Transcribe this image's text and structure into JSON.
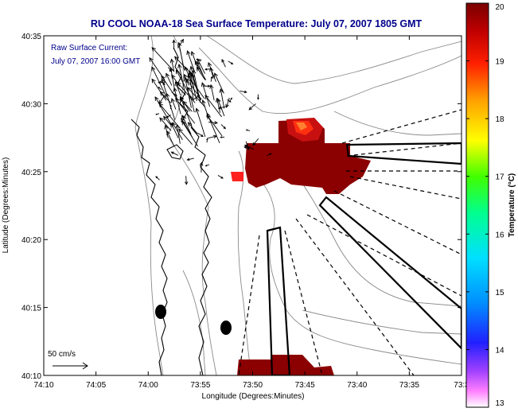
{
  "title": "RU COOL  NOAA-18  Sea Surface Temperature:  July 07, 2007 1805 GMT",
  "annotation": {
    "line1": "Raw Surface Current:",
    "line2": "July 07, 2007 16:00 GMT"
  },
  "scale_label": "50 cm/s",
  "xlabel": "Longitude (Degrees:Minutes)",
  "ylabel": "Latitude (Degrees:Minutes)",
  "colorbar": {
    "label": "Temperature (°C)",
    "min": 13,
    "max": 20,
    "ticks": [
      "20",
      "19",
      "18",
      "17",
      "16",
      "15",
      "14",
      "13"
    ]
  },
  "x_ticks": [
    "74:10",
    "74:05",
    "74:00",
    "73:55",
    "73:50",
    "73:45",
    "73:40",
    "73:35",
    "73:3"
  ],
  "y_ticks": [
    "40:35",
    "40:30",
    "40:25",
    "40:20",
    "40:15",
    "40:10"
  ],
  "colors": {
    "title": "#00008b",
    "annotation": "#00008b",
    "sst_warm": "#8b0000",
    "sst_hot": "#ff2a00"
  }
}
